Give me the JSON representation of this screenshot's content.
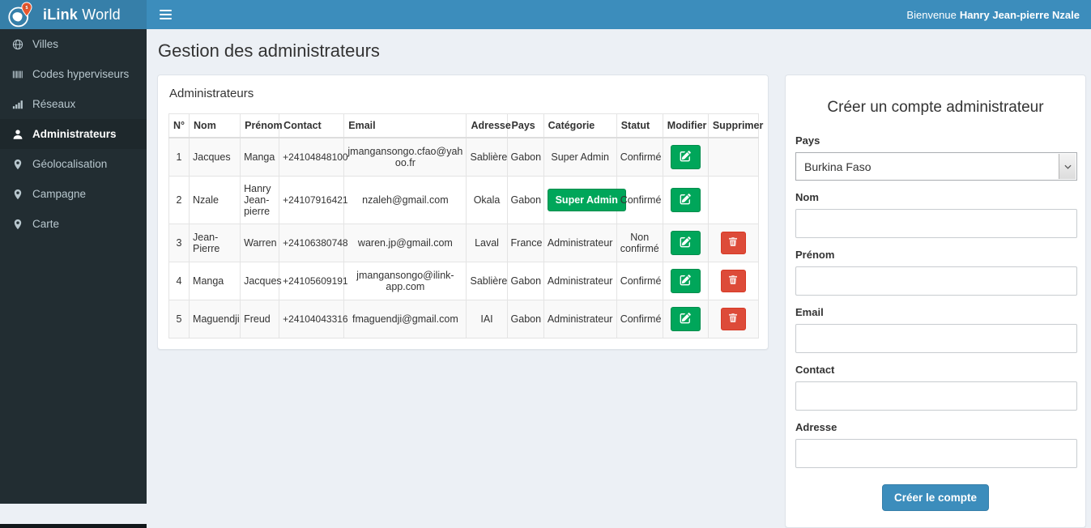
{
  "colors": {
    "navbar": "#3c8dbc",
    "brand_bg": "#367fa9",
    "sidebar": "#222d32",
    "sidebar_active": "#1e282c",
    "success_green": "#00a65a",
    "danger_red": "#dd4b39",
    "content_bg": "#ecf0f5",
    "pin_orange": "#e8562d"
  },
  "brand": {
    "title_bold": "iLink",
    "title_rest": "World",
    "logo_icon": "globe-pin-logo"
  },
  "navbar": {
    "menu_icon": "hamburger-icon",
    "welcome_prefix": "Bienvenue",
    "welcome_name": "Hanry Jean-pierre Nzale"
  },
  "sidebar": {
    "items": [
      {
        "label": "Villes",
        "icon": "globe-icon",
        "active": false
      },
      {
        "label": "Codes hyperviseurs",
        "icon": "barcode-icon",
        "active": false
      },
      {
        "label": "Réseaux",
        "icon": "signal-bars-icon",
        "active": false
      },
      {
        "label": "Administrateurs",
        "icon": "user-icon",
        "active": true
      },
      {
        "label": "Géolocalisation",
        "icon": "map-marker-icon",
        "active": false
      },
      {
        "label": "Campagne",
        "icon": "map-marker-icon",
        "active": false
      },
      {
        "label": "Carte",
        "icon": "map-marker-icon",
        "active": false
      }
    ]
  },
  "page": {
    "title": "Gestion des administrateurs"
  },
  "admin_panel": {
    "title": "Administrateurs",
    "table": {
      "headers": [
        "N°",
        "Nom",
        "Prénom",
        "Contact",
        "Email",
        "Adresse",
        "Pays",
        "Catégorie",
        "Statut",
        "Modifier",
        "Supprimer"
      ],
      "edit_icon": "pencil-square-icon",
      "delete_icon": "trash-icon",
      "rows": [
        {
          "num": "1",
          "nom": "Jacques",
          "prenom": "Manga",
          "contact": "+24104848100",
          "email": "jmangansongo.cfao@yahoo.fr",
          "adresse": "Sablière",
          "pays": "Gabon",
          "categorie": "Super Admin",
          "categorie_badge": false,
          "statut": "Confirmé",
          "can_delete": false
        },
        {
          "num": "2",
          "nom": "Nzale",
          "prenom": "Hanry Jean-pierre",
          "contact": "+24107916421",
          "email": "nzaleh@gmail.com",
          "adresse": "Okala",
          "pays": "Gabon",
          "categorie": "Super Admin",
          "categorie_badge": true,
          "statut": "Confirmé",
          "can_delete": false
        },
        {
          "num": "3",
          "nom": "Jean-Pierre",
          "prenom": "Warren",
          "contact": "+24106380748",
          "email": "waren.jp@gmail.com",
          "adresse": "Laval",
          "pays": "France",
          "categorie": "Administrateur",
          "categorie_badge": false,
          "statut": "Non confirmé",
          "can_delete": true
        },
        {
          "num": "4",
          "nom": "Manga",
          "prenom": "Jacques",
          "contact": "+24105609191",
          "email": "jmangansongo@ilink-app.com",
          "adresse": "Sablière",
          "pays": "Gabon",
          "categorie": "Administrateur",
          "categorie_badge": false,
          "statut": "Confirmé",
          "can_delete": true
        },
        {
          "num": "5",
          "nom": "Maguendji",
          "prenom": "Freud",
          "contact": "+24104043316",
          "email": "fmaguendji@gmail.com",
          "adresse": "IAI",
          "pays": "Gabon",
          "categorie": "Administrateur",
          "categorie_badge": false,
          "statut": "Confirmé",
          "can_delete": true
        }
      ]
    }
  },
  "create_panel": {
    "title": "Créer un compte administrateur",
    "fields": {
      "pays": {
        "label": "Pays",
        "value": "Burkina Faso",
        "type": "select"
      },
      "nom": {
        "label": "Nom",
        "value": ""
      },
      "prenom": {
        "label": "Prénom",
        "value": ""
      },
      "email": {
        "label": "Email",
        "value": ""
      },
      "contact": {
        "label": "Contact",
        "value": ""
      },
      "adresse": {
        "label": "Adresse",
        "value": ""
      }
    },
    "submit_label": "Créer le compte"
  }
}
